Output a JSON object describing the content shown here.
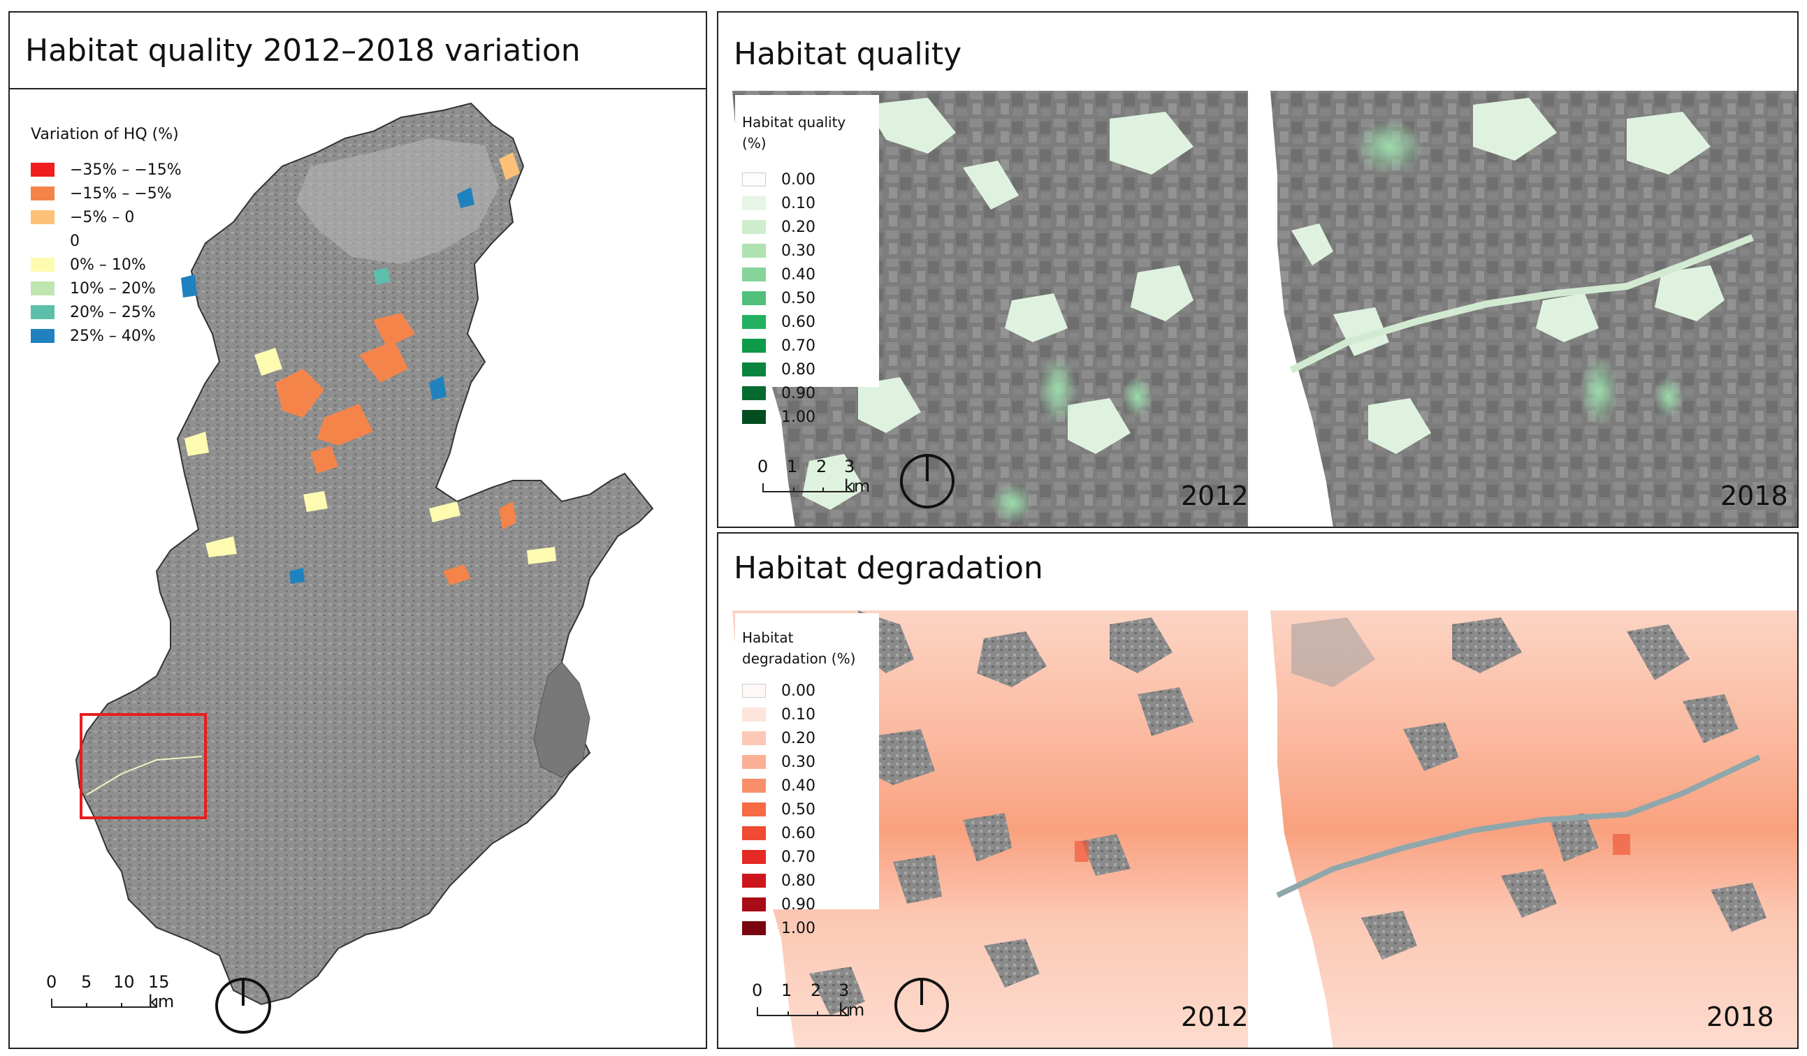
{
  "left_panel": {
    "title": "Habitat quality 2012–2018 variation",
    "legend": {
      "title": "Variation of HQ (%)",
      "items": [
        {
          "label": "−35% – −15%",
          "color": "#f01e1e"
        },
        {
          "label": "−15% – −5%",
          "color": "#f5844a"
        },
        {
          "label": "−5% – 0",
          "color": "#fcc177"
        },
        {
          "label": "0",
          "color": ""
        },
        {
          "label": "0% – 10%",
          "color": "#fdfbb0"
        },
        {
          "label": "10% – 20%",
          "color": "#bfe6b0"
        },
        {
          "label": "20% – 25%",
          "color": "#5bbfab"
        },
        {
          "label": "25% – 40%",
          "color": "#1f82bf"
        }
      ]
    },
    "scale": {
      "ticks": [
        "0",
        "5",
        "10",
        "15 km"
      ]
    },
    "north_arrow": "north-arrow"
  },
  "quality_panel": {
    "title": "Habitat quality",
    "legend": {
      "title": "Habitat quality (%)",
      "items": [
        {
          "label": "0.00",
          "color": "#fbfefb"
        },
        {
          "label": "0.10",
          "color": "#e6f5e6"
        },
        {
          "label": "0.20",
          "color": "#cdedcd"
        },
        {
          "label": "0.30",
          "color": "#aee2b0"
        },
        {
          "label": "0.40",
          "color": "#86d499"
        },
        {
          "label": "0.50",
          "color": "#50c07a"
        },
        {
          "label": "0.60",
          "color": "#22b060"
        },
        {
          "label": "0.70",
          "color": "#0f9a4a"
        },
        {
          "label": "0.80",
          "color": "#0a843c"
        },
        {
          "label": "0.90",
          "color": "#076b2f"
        },
        {
          "label": "1.00",
          "color": "#034d20"
        }
      ]
    },
    "scale": {
      "ticks": [
        "0",
        "1",
        "2",
        "3 km"
      ]
    },
    "years": [
      "2012",
      "2018"
    ]
  },
  "degradation_panel": {
    "title": "Habitat degradation",
    "legend": {
      "title_line1": "Habitat",
      "title_line2": "degradation (%)",
      "items": [
        {
          "label": "0.00",
          "color": "#fff8f6"
        },
        {
          "label": "0.10",
          "color": "#fde4dc"
        },
        {
          "label": "0.20",
          "color": "#fcc9b7"
        },
        {
          "label": "0.30",
          "color": "#fbaf94"
        },
        {
          "label": "0.40",
          "color": "#f98e6b"
        },
        {
          "label": "0.50",
          "color": "#f66a44"
        },
        {
          "label": "0.60",
          "color": "#f04a32"
        },
        {
          "label": "0.70",
          "color": "#e42a22"
        },
        {
          "label": "0.80",
          "color": "#cc161b"
        },
        {
          "label": "0.90",
          "color": "#a80c16"
        },
        {
          "label": "1.00",
          "color": "#7a0510"
        }
      ]
    },
    "scale": {
      "ticks": [
        "0",
        "1",
        "2",
        "3 km"
      ]
    },
    "years": [
      "2012",
      "2018"
    ]
  }
}
